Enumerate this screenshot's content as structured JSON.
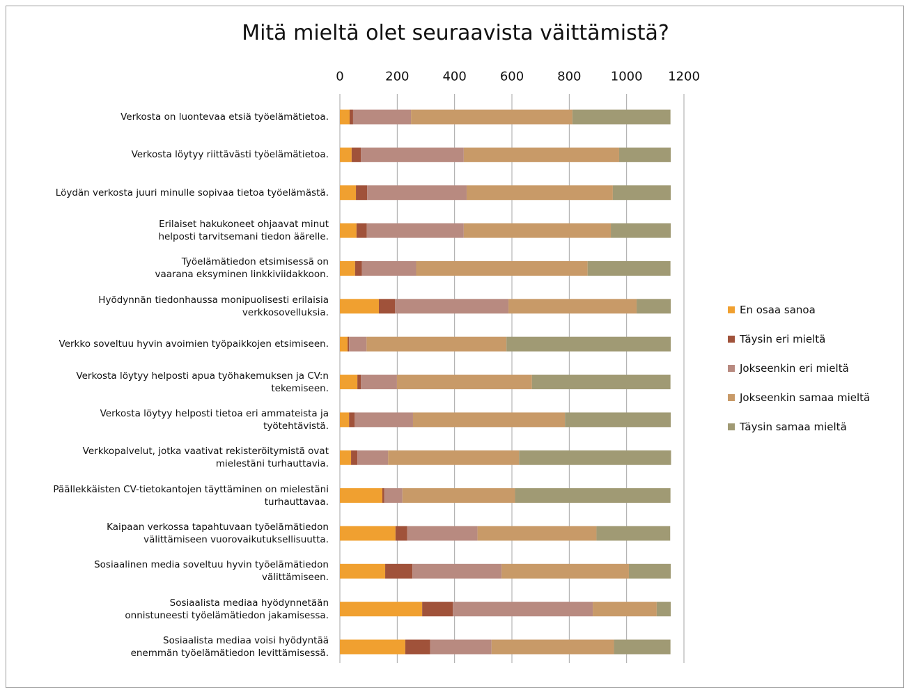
{
  "chart_data": {
    "type": "stacked_barh",
    "title": "Mitä mieltä olet seuraavista väittämistä?",
    "categories": [
      "Verkosta on luontevaa etsiä työelämätietoa.",
      "Verkosta löytyy riittävästi työelämätietoa.",
      "Löydän verkosta juuri minulle sopivaa tietoa työelämästä.",
      "Erilaiset hakukoneet ohjaavat minut\nhelposti tarvitsemani tiedon äärelle.",
      "Työelämätiedon etsimisessä on\nvaarana eksyminen linkkiviidakkoon.",
      "Hyödynnän tiedonhaussa monipuolisesti erilaisia\nverkkosovelluksia.",
      "Verkko soveltuu hyvin avoimien työpaikkojen etsimiseen.",
      "Verkosta löytyy helposti apua työhakemuksen ja CV:n\ntekemiseen.",
      "Verkosta löytyy helposti tietoa eri ammateista ja\ntyötehtävistä.",
      "Verkkopalvelut, jotka vaativat rekisteröitymistä ovat\nmielestäni turhauttavia.",
      "Päällekkäisten CV-tietokantojen täyttäminen on mielestäni\nturhauttavaa.",
      "Kaipaan verkossa tapahtuvaan työelämätiedon\nvälittämiseen vuorovaikutuksellisuutta.",
      "Sosiaalinen media soveltuu hyvin työelämätiedon\nvälittämiseen.",
      "Sosiaalista mediaa hyödynnetään\nonnistuneesti työelämätiedon jakamisessa.",
      "Sosiaalista mediaa voisi hyödyntää\nenemmän työelämätiedon levittämisessä."
    ],
    "series": [
      {
        "name": "En osaa sanoa",
        "color": "#f0a030",
        "values": [
          34,
          41,
          56,
          58,
          53,
          136,
          27,
          61,
          32,
          39,
          148,
          194,
          158,
          287,
          228
        ]
      },
      {
        "name": "Täysin eri mieltä",
        "color": "#a0523a",
        "values": [
          12,
          32,
          39,
          36,
          24,
          56,
          5,
          12,
          19,
          22,
          7,
          41,
          95,
          107,
          87
        ]
      },
      {
        "name": "Jokseenkin eri mieltä",
        "color": "#b88a80",
        "values": [
          202,
          359,
          347,
          338,
          189,
          396,
          61,
          126,
          204,
          107,
          63,
          245,
          311,
          488,
          214
        ]
      },
      {
        "name": "Jokseenkin samaa mieltä",
        "color": "#c89a68",
        "values": [
          563,
          542,
          510,
          513,
          598,
          447,
          488,
          471,
          530,
          457,
          393,
          415,
          444,
          223,
          427
        ]
      },
      {
        "name": "Täysin samaa mieltä",
        "color": "#a09a74",
        "values": [
          342,
          180,
          202,
          209,
          289,
          119,
          573,
          483,
          369,
          530,
          542,
          257,
          146,
          49,
          197
        ]
      }
    ],
    "xlim": [
      0,
      1200
    ],
    "xticks": [
      0,
      200,
      400,
      600,
      800,
      1000,
      1200
    ],
    "grid": true,
    "legend": "right"
  }
}
